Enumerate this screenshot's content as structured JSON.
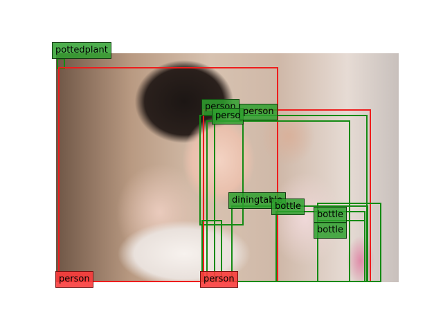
{
  "colors": {
    "person": "#ee1c1c",
    "other": "#138a13"
  },
  "detections": [
    {
      "label": "pottedplant",
      "category": "other"
    },
    {
      "label": "person",
      "category": "person"
    },
    {
      "label": "person",
      "category": "other"
    },
    {
      "label": "perso",
      "category": "other"
    },
    {
      "label": "person",
      "category": "other"
    },
    {
      "label": "person",
      "category": "person"
    },
    {
      "label": "diningtable",
      "category": "other"
    },
    {
      "label": "bottle",
      "category": "other"
    },
    {
      "label": "bottle",
      "category": "other"
    },
    {
      "label": "bottle",
      "category": "other"
    },
    {
      "label": "person",
      "category": "person"
    }
  ]
}
